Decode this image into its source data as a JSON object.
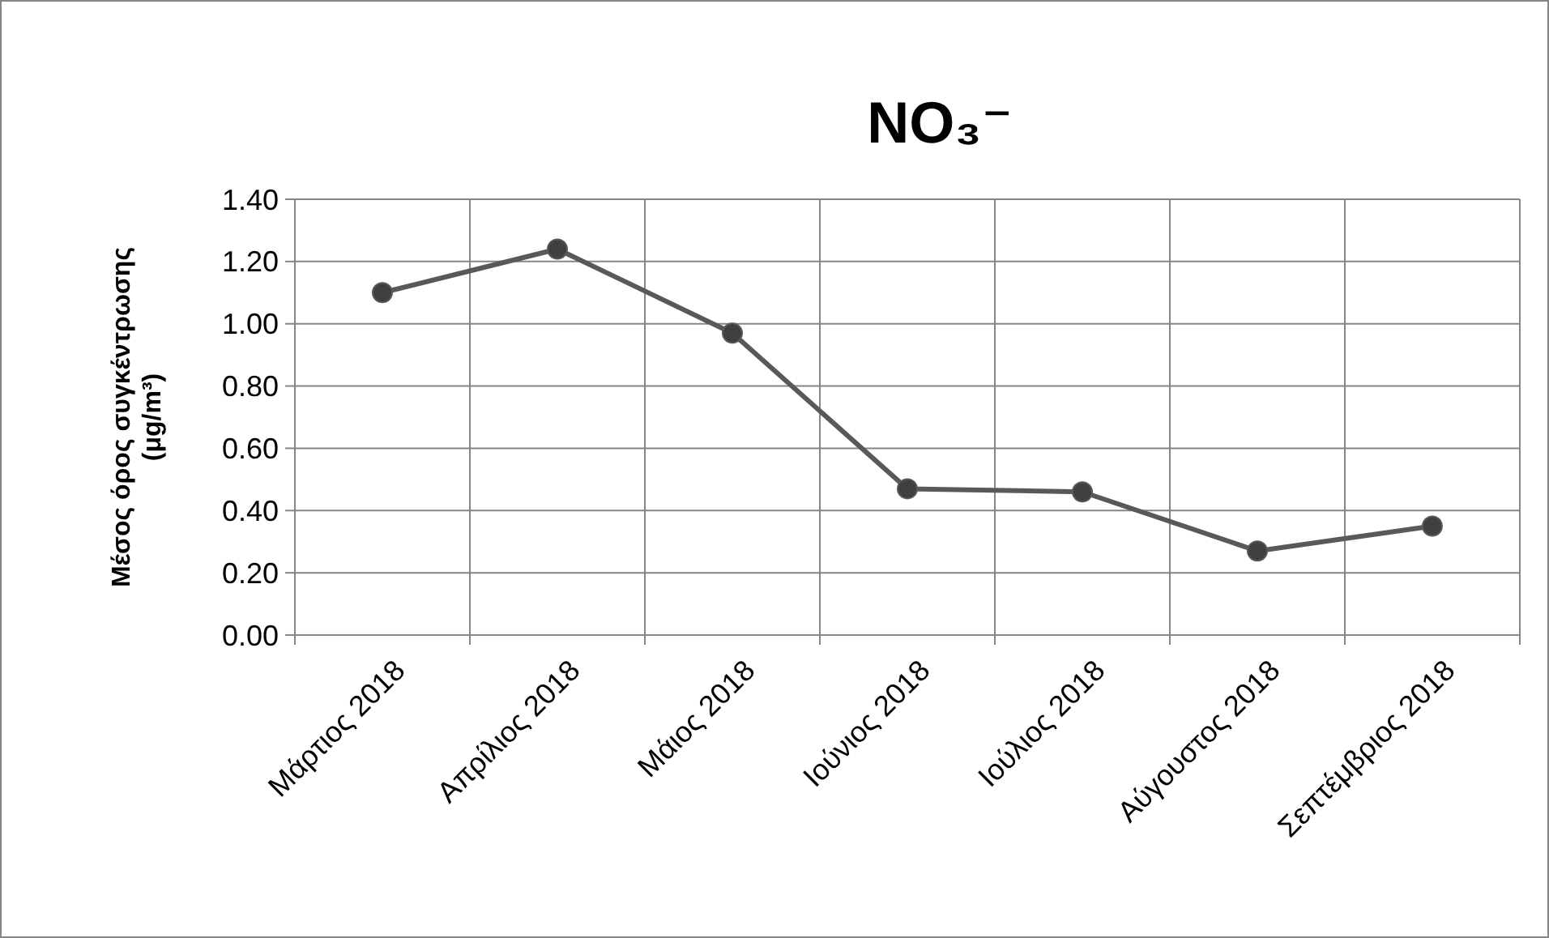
{
  "chart_data": {
    "type": "line",
    "title": "NO₃⁻",
    "ylabel": "Μέσος όρος συγκέντρωσης\n(μg/m³)",
    "categories": [
      "Μάρτιος 2018",
      "Απρίλιος 2018",
      "Μάιος 2018",
      "Ιούνιος 2018",
      "Ιούλιος 2018",
      "Αύγουστος 2018",
      "Σεπτέμβριος 2018"
    ],
    "series": [
      {
        "color": "#595959",
        "values": [
          1.1,
          1.24,
          0.97,
          0.47,
          0.46,
          0.27,
          0.35
        ]
      }
    ],
    "ylim": [
      0,
      1.4
    ],
    "yticks": [
      {
        "value": 0,
        "label": "0.00"
      },
      {
        "value": 0.2,
        "label": "0.20"
      },
      {
        "value": 0.4,
        "label": "0.40"
      },
      {
        "value": 0.6,
        "label": "0.60"
      },
      {
        "value": 0.8,
        "label": "0.80"
      },
      {
        "value": 1.0,
        "label": "1.00"
      },
      {
        "value": 1.2,
        "label": "1.20"
      },
      {
        "value": 1.4,
        "label": "1.40"
      }
    ],
    "grid": true,
    "marker": "circle",
    "line_style": "solid"
  }
}
